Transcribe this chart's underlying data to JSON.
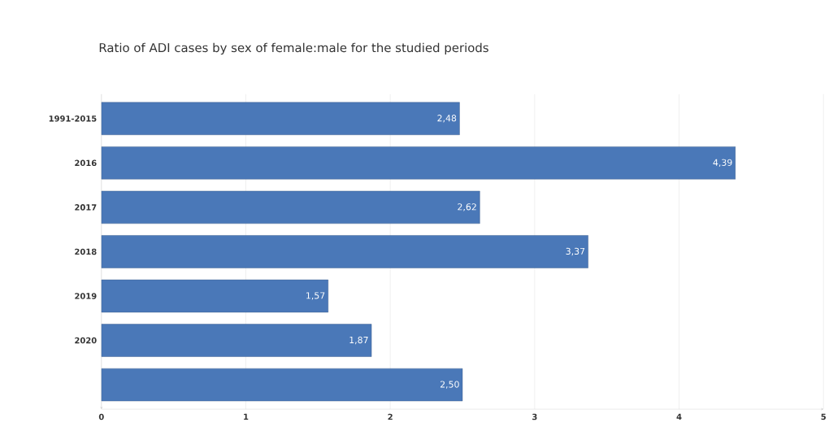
{
  "chart_data": {
    "type": "bar",
    "orientation": "horizontal",
    "title": "Ratio of ADI cases by sex of female:male for the studied periods",
    "categories": [
      "1991-2015",
      "2016",
      "2017",
      "2018",
      "2019",
      "2020",
      null
    ],
    "values": [
      2.48,
      4.39,
      2.62,
      3.37,
      1.57,
      1.87,
      2.5
    ],
    "value_labels": [
      "2,48",
      "4,39",
      "2,62",
      "3,37",
      "1,57",
      "1,87",
      "2,50"
    ],
    "color": "#4a78b8",
    "xlim": [
      0,
      5
    ],
    "xticks": [
      0,
      1,
      2,
      3,
      4,
      5
    ],
    "grid": "x"
  }
}
